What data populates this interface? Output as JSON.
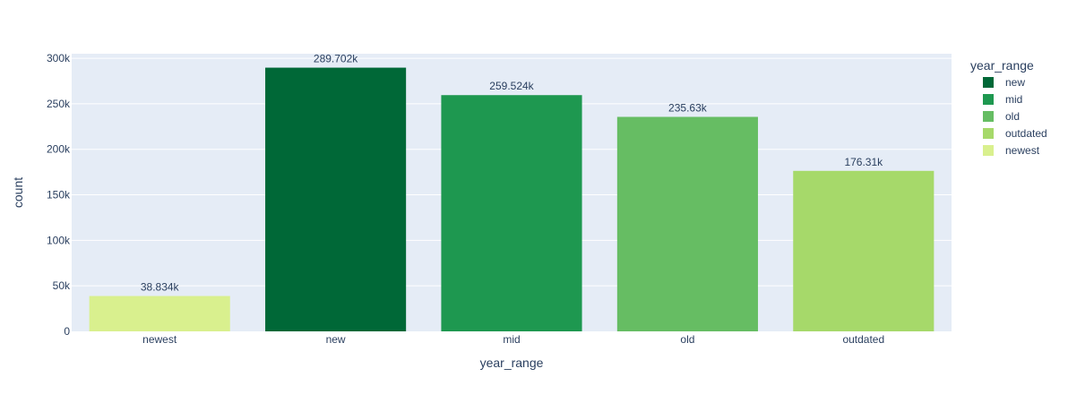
{
  "chart_data": {
    "type": "bar",
    "categories": [
      "newest",
      "new",
      "mid",
      "old",
      "outdated"
    ],
    "values": [
      38834,
      289702,
      259524,
      235630,
      176310
    ],
    "value_labels": [
      "38.834k",
      "289.702k",
      "259.524k",
      "235.63k",
      "176.31k"
    ],
    "colors": [
      "#d9f08e",
      "#006837",
      "#1e9850",
      "#66bd63",
      "#a6d96a"
    ],
    "xlabel": "year_range",
    "ylabel": "count",
    "ylim": [
      0,
      305000
    ],
    "yticks": [
      0,
      50000,
      100000,
      150000,
      200000,
      250000,
      300000
    ],
    "ytick_labels": [
      "0",
      "50k",
      "100k",
      "150k",
      "200k",
      "250k",
      "300k"
    ],
    "grid": true,
    "legend": {
      "title": "year_range",
      "position": "right",
      "items": [
        {
          "name": "new",
          "color": "#006837"
        },
        {
          "name": "mid",
          "color": "#1e9850"
        },
        {
          "name": "old",
          "color": "#66bd63"
        },
        {
          "name": "outdated",
          "color": "#a6d96a"
        },
        {
          "name": "newest",
          "color": "#d9f08e"
        }
      ]
    },
    "plot_bg": "#e5ecf6"
  }
}
